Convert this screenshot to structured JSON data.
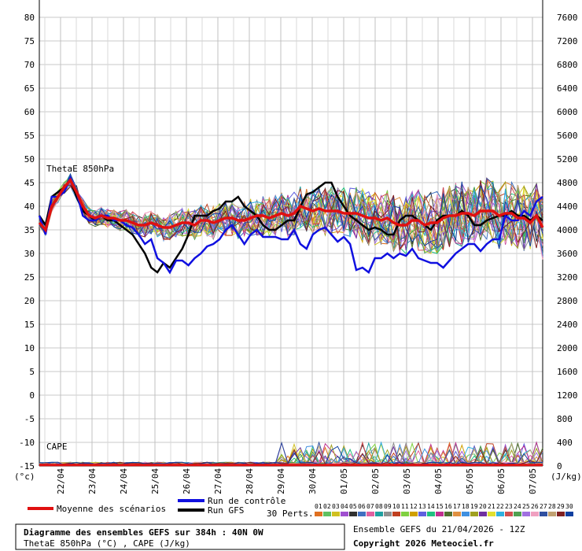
{
  "chart_data": {
    "type": "line",
    "title": "Diagramme des ensembles GEFS sur 384h : 40N 0W",
    "subtitle": "ThetaE 850hPa (°C) , CAPE (J/kg)",
    "run_label": "Ensemble GEFS du 21/04/2026 - 12Z",
    "copyright": "Copyright 2026 Meteociel.fr",
    "left_axis": {
      "unit": "(°c)",
      "ticks": [
        80,
        75,
        70,
        65,
        60,
        55,
        50,
        45,
        40,
        35,
        30,
        25,
        20,
        15,
        10,
        5,
        0,
        -5,
        -10,
        -15
      ],
      "ylim": [
        -15,
        80
      ]
    },
    "right_axis": {
      "unit": "(J/kg)",
      "ticks": [
        7600,
        7200,
        6800,
        6400,
        6000,
        5600,
        5200,
        4800,
        4400,
        4000,
        3600,
        3200,
        2800,
        2400,
        2000,
        1600,
        1200,
        800,
        400,
        0
      ],
      "ylim": [
        0,
        7600
      ]
    },
    "x_ticks": [
      "22/04",
      "23/04",
      "24/04",
      "25/04",
      "26/04",
      "27/04",
      "28/04",
      "29/04",
      "30/04",
      "01/05",
      "02/05",
      "03/05",
      "04/05",
      "05/05",
      "06/05",
      "07/05"
    ],
    "panel_labels": {
      "thetae": "ThetaE 850hPa",
      "cape": "CAPE"
    },
    "legend": {
      "mean": "Moyenne des scénarios",
      "control": "Run de contrôle",
      "gfs": "Run GFS",
      "perts": "30 Perts.",
      "perts_ids": [
        "01",
        "02",
        "03",
        "04",
        "05",
        "06",
        "07",
        "08",
        "09",
        "10",
        "11",
        "12",
        "13",
        "14",
        "15",
        "16",
        "17",
        "18",
        "19",
        "20",
        "21",
        "22",
        "23",
        "24",
        "25",
        "26",
        "27",
        "28",
        "29",
        "30"
      ]
    },
    "colors": {
      "mean": "#e01010",
      "control": "#1010e0",
      "gfs": "#000000",
      "perts": [
        "#e07020",
        "#60c060",
        "#d0c020",
        "#a050d0",
        "#303030",
        "#4070c0",
        "#e060a0",
        "#20a0a0",
        "#909090",
        "#c04020",
        "#80d040",
        "#d0a000",
        "#6060e0",
        "#20c080",
        "#c03090",
        "#507030",
        "#e09040",
        "#4090e0",
        "#a0a020",
        "#7030a0",
        "#e0e030",
        "#30b0e0",
        "#d05050",
        "#50a050",
        "#a070e0",
        "#f0a0c0",
        "#3050a0",
        "#c0a070",
        "#802020",
        "#1040a0"
      ]
    },
    "thetae_mean": [
      36.5,
      35,
      40,
      42,
      44,
      45.5,
      43,
      40,
      38,
      37.5,
      38,
      37.5,
      37.5,
      37,
      37,
      36.5,
      36,
      36,
      36.5,
      36,
      35.5,
      35.5,
      36,
      36.5,
      36.5,
      36,
      37,
      37,
      36.5,
      37,
      37.5,
      37.5,
      37,
      37,
      37.5,
      38,
      38,
      37.5,
      38,
      38.5,
      38,
      38.5,
      40,
      39.5,
      39,
      39.5,
      39,
      39,
      39,
      38.5,
      38.5,
      38.5,
      38,
      37.5,
      37.5,
      37,
      37.5,
      36.5,
      36,
      36,
      37,
      37,
      36,
      36.5,
      36.5,
      37.5,
      38,
      38,
      38.5,
      38.5,
      38,
      39,
      39,
      39,
      38,
      38.5,
      38.5,
      37.5,
      37.5,
      36.5,
      38,
      35.5
    ],
    "thetae_control": [
      38,
      34,
      42,
      42,
      43,
      46,
      43,
      38,
      37,
      37,
      38,
      38,
      37,
      37,
      36,
      35.5,
      34,
      32,
      33,
      29,
      28,
      26,
      28.5,
      28.5,
      27.5,
      29,
      30,
      31.5,
      32,
      33,
      35,
      36,
      34,
      32,
      34,
      35,
      33.5,
      33.5,
      33.5,
      33,
      33,
      35,
      32,
      31,
      34,
      35,
      35.5,
      34,
      32.5,
      33.5,
      32,
      26.5,
      27,
      26,
      29,
      29,
      30,
      29,
      30,
      29.5,
      31,
      29,
      28.5,
      28,
      28,
      27,
      28.5,
      30,
      31,
      32,
      32,
      30.5,
      32,
      33,
      33,
      38,
      37,
      37,
      39,
      38,
      41,
      42
    ],
    "thetae_gfs": [
      38,
      36,
      42,
      43,
      44,
      45.5,
      42,
      39,
      38,
      37,
      38,
      37,
      37,
      36,
      35,
      34,
      32,
      30,
      27,
      26,
      28,
      27,
      29,
      31,
      34,
      38,
      38,
      38,
      39,
      39.5,
      41,
      41,
      42,
      40,
      39,
      38,
      36,
      35,
      35,
      36,
      37,
      37,
      40,
      42.5,
      43,
      44,
      45,
      45,
      42,
      40,
      38,
      37,
      36,
      35,
      35.5,
      35,
      34,
      34,
      37,
      38,
      38,
      37,
      36,
      35,
      37,
      38,
      38,
      38,
      39,
      38,
      36,
      36,
      37,
      37.5,
      38,
      38,
      39,
      38,
      38,
      37,
      38,
      37
    ]
  }
}
